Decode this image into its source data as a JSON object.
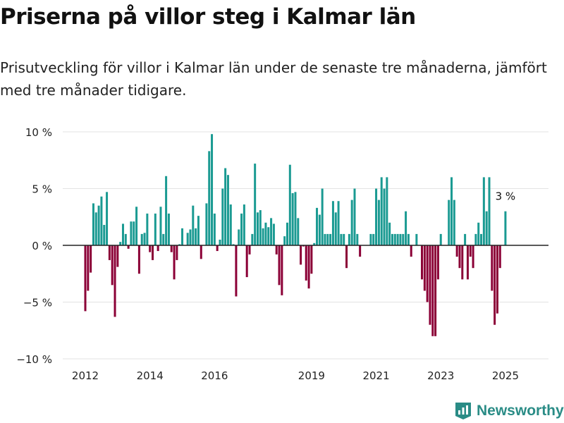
{
  "header": {
    "title": "Priserna på villor steg i Kalmar län",
    "subtitle": "Prisutveckling för villor i Kalmar län under de senaste tre månaderna, jämfört med tre månader tidigare."
  },
  "brand": {
    "name": "Newsworthy",
    "color": "#2a8c86"
  },
  "colors": {
    "positive": "#1a9a92",
    "negative": "#8b0036",
    "zero_line": "#222222",
    "axis_text": "#222222"
  },
  "chart_data": {
    "type": "bar",
    "title": "Priserna på villor steg i Kalmar län",
    "subtitle": "Prisutveckling för villor i Kalmar län under de senaste tre månaderna, jämfört med tre månader tidigare.",
    "xlabel": "",
    "ylabel": "",
    "ylim": [
      -10,
      10
    ],
    "y_ticks": [
      10,
      5,
      0,
      -5,
      -10
    ],
    "y_tick_labels": [
      "10 %",
      "5 %",
      "0 %",
      "−5 %",
      "−10 %"
    ],
    "x_tick_labels": [
      "2012",
      "2014",
      "2016",
      "2019",
      "2021",
      "2023",
      "2025"
    ],
    "x_tick_months": [
      0,
      24,
      48,
      84,
      108,
      132,
      156
    ],
    "first_month": "2012-01",
    "interval": "monthly",
    "values": [
      -5.8,
      -4.0,
      -2.4,
      3.7,
      2.9,
      3.5,
      4.3,
      1.8,
      4.7,
      -1.3,
      -3.5,
      -6.3,
      -1.9,
      0.3,
      1.9,
      1.0,
      -0.3,
      2.1,
      2.1,
      3.4,
      -2.5,
      1.0,
      1.1,
      2.8,
      -0.6,
      -1.3,
      2.8,
      -0.5,
      3.4,
      1.0,
      6.1,
      2.8,
      -0.6,
      -3.0,
      -1.3,
      0.1,
      1.5,
      0.0,
      1.1,
      1.4,
      3.5,
      1.5,
      2.6,
      -1.2,
      0.0,
      3.7,
      8.3,
      9.8,
      2.8,
      -0.5,
      0.5,
      5.0,
      6.8,
      6.2,
      3.6,
      0.1,
      -4.5,
      1.4,
      2.8,
      3.6,
      -2.8,
      -0.8,
      1.0,
      7.2,
      2.9,
      3.1,
      1.5,
      2.0,
      1.6,
      2.4,
      1.9,
      -0.8,
      -3.5,
      -4.4,
      0.8,
      2.0,
      7.1,
      4.6,
      4.7,
      2.4,
      -1.7,
      -0.1,
      -3.1,
      -3.8,
      -2.5,
      0.2,
      3.3,
      2.7,
      5.0,
      1.0,
      1.0,
      1.0,
      3.9,
      2.9,
      3.9,
      1.0,
      1.0,
      -2.0,
      1.0,
      4.0,
      5.0,
      1.0,
      -1.0,
      0.0,
      0.0,
      0.0,
      1.0,
      1.0,
      5.0,
      4.0,
      6.0,
      5.0,
      6.0,
      2.0,
      1.0,
      1.0,
      1.0,
      1.0,
      1.0,
      3.0,
      1.0,
      -1.0,
      0.0,
      1.0,
      0.0,
      -3.0,
      -4.0,
      -5.0,
      -7.0,
      -8.0,
      -8.0,
      -3.0,
      1.0,
      0.0,
      0.0,
      4.0,
      6.0,
      4.0,
      -1.0,
      -2.0,
      -3.0,
      1.0,
      -3.0,
      -1.0,
      -2.0,
      1.0,
      2.0,
      1.0,
      6.0,
      3.0,
      6.0,
      -4.0,
      -7.0,
      -6.0,
      -2.0,
      0.0,
      3.0
    ],
    "annotation": {
      "label": "3 %",
      "month_index": 156
    }
  }
}
